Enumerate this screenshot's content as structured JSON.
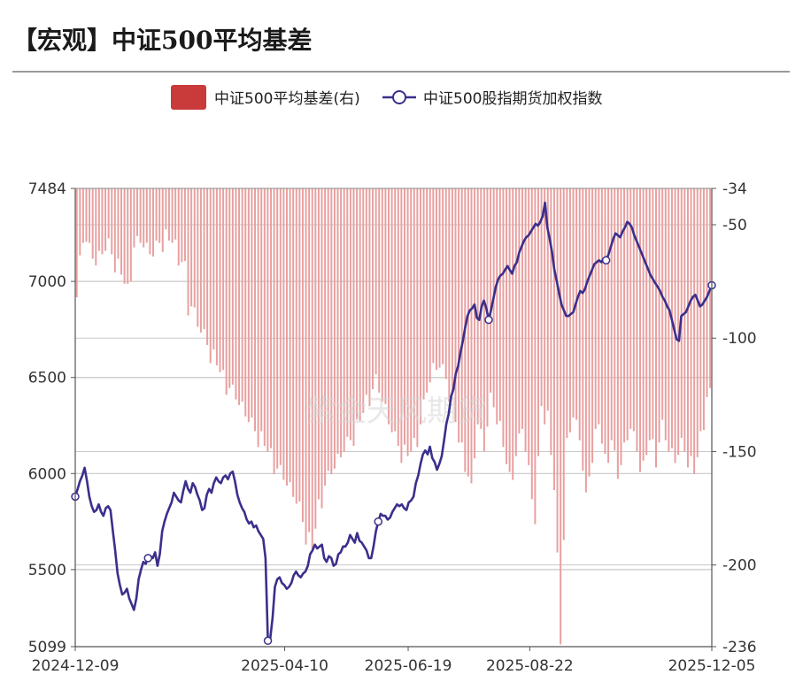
{
  "header": {
    "title": "【宏观】中证500平均基差"
  },
  "watermark": "紫金天风期货",
  "chart_data": {
    "type": "bar+line",
    "title": "【宏观】中证500平均基差",
    "x_tick_labels": [
      "2024-12-09",
      "2025-04-10",
      "2025-06-19",
      "2025-08-22",
      "2025-12-05"
    ],
    "y_left": {
      "range": [
        5099,
        7484
      ],
      "ticks": [
        7484,
        7000,
        6500,
        6000,
        5500,
        5099
      ]
    },
    "y_right": {
      "range": [
        -236,
        -34
      ],
      "ticks": [
        -34,
        -50,
        -100,
        -150,
        -200,
        -236
      ]
    },
    "grid": "horizontal",
    "legend_position": "top-center",
    "series": [
      {
        "name": "中证500平均基差(右)",
        "type": "bar",
        "axis": "right",
        "color": "#c93a3a",
        "anchors": [
          [
            0,
            -82
          ],
          [
            2,
            -53
          ],
          [
            4,
            -62
          ],
          [
            6,
            -68
          ],
          [
            8,
            -63
          ],
          [
            10,
            -60
          ],
          [
            12,
            -66
          ],
          [
            14,
            -72
          ],
          [
            16,
            -80
          ],
          [
            18,
            -60
          ],
          [
            20,
            -58
          ],
          [
            22,
            -62
          ],
          [
            24,
            -64
          ],
          [
            26,
            -58
          ],
          [
            28,
            -56
          ],
          [
            30,
            -58
          ],
          [
            32,
            -63
          ],
          [
            34,
            -70
          ],
          [
            35,
            -90
          ],
          [
            36,
            -86
          ],
          [
            38,
            -95
          ],
          [
            40,
            -100
          ],
          [
            42,
            -106
          ],
          [
            44,
            -112
          ],
          [
            46,
            -118
          ],
          [
            48,
            -122
          ],
          [
            50,
            -127
          ],
          [
            52,
            -132
          ],
          [
            54,
            -137
          ],
          [
            56,
            -141
          ],
          [
            58,
            -145
          ],
          [
            60,
            -150
          ],
          [
            62,
            -155
          ],
          [
            64,
            -160
          ],
          [
            66,
            -165
          ],
          [
            68,
            -170
          ],
          [
            70,
            -176
          ],
          [
            72,
            -186
          ],
          [
            74,
            -193
          ],
          [
            76,
            -175
          ],
          [
            78,
            -165
          ],
          [
            80,
            -160
          ],
          [
            82,
            -155
          ],
          [
            84,
            -150
          ],
          [
            86,
            -145
          ],
          [
            88,
            -140
          ],
          [
            90,
            -133
          ],
          [
            92,
            -125
          ],
          [
            94,
            -120
          ],
          [
            96,
            -128
          ],
          [
            98,
            -138
          ],
          [
            100,
            -145
          ],
          [
            102,
            -150
          ],
          [
            104,
            -152
          ],
          [
            106,
            -148
          ],
          [
            108,
            -138
          ],
          [
            110,
            -124
          ],
          [
            112,
            -115
          ],
          [
            114,
            -113
          ],
          [
            116,
            -118
          ],
          [
            118,
            -128
          ],
          [
            120,
            -146
          ],
          [
            122,
            -154
          ],
          [
            124,
            -168
          ],
          [
            126,
            -138
          ],
          [
            128,
            -150
          ],
          [
            130,
            -128
          ],
          [
            132,
            -133
          ],
          [
            134,
            -148
          ],
          [
            136,
            -163
          ],
          [
            138,
            -152
          ],
          [
            140,
            -140
          ],
          [
            142,
            -160
          ],
          [
            144,
            -182
          ],
          [
            146,
            -130
          ],
          [
            148,
            -136
          ],
          [
            150,
            -167
          ],
          [
            152,
            -230
          ],
          [
            154,
            -148
          ],
          [
            156,
            -135
          ],
          [
            158,
            -145
          ],
          [
            160,
            -172
          ],
          [
            162,
            -150
          ],
          [
            164,
            -138
          ],
          [
            166,
            -155
          ],
          [
            168,
            -145
          ],
          [
            170,
            -162
          ],
          [
            172,
            -150
          ],
          [
            174,
            -140
          ],
          [
            176,
            -150
          ],
          [
            178,
            -158
          ],
          [
            180,
            -145
          ],
          [
            182,
            -152
          ],
          [
            184,
            -140
          ],
          [
            186,
            -150
          ],
          [
            188,
            -155
          ],
          [
            190,
            -148
          ],
          [
            192,
            -152
          ],
          [
            194,
            -160
          ],
          [
            196,
            -145
          ],
          [
            198,
            -126
          ]
        ]
      },
      {
        "name": "中证500股指期货加权指数",
        "type": "line",
        "axis": "left",
        "color": "#3a2f8c",
        "values": [
          5880,
          5920,
          5960,
          5990,
          6030,
          5960,
          5880,
          5830,
          5800,
          5810,
          5840,
          5800,
          5780,
          5820,
          5830,
          5810,
          5700,
          5600,
          5480,
          5420,
          5370,
          5380,
          5400,
          5350,
          5320,
          5290,
          5350,
          5450,
          5500,
          5540,
          5530,
          5560,
          5570,
          5560,
          5590,
          5520,
          5580,
          5700,
          5750,
          5790,
          5820,
          5850,
          5900,
          5880,
          5860,
          5850,
          5910,
          5960,
          5920,
          5900,
          5950,
          5930,
          5890,
          5860,
          5810,
          5820,
          5890,
          5920,
          5900,
          5950,
          5980,
          5960,
          5950,
          5980,
          5990,
          5970,
          6000,
          6010,
          5960,
          5890,
          5850,
          5820,
          5800,
          5760,
          5740,
          5750,
          5720,
          5730,
          5700,
          5680,
          5660,
          5560,
          5130,
          5140,
          5250,
          5410,
          5450,
          5460,
          5430,
          5420,
          5400,
          5410,
          5430,
          5470,
          5490,
          5470,
          5460,
          5480,
          5490,
          5520,
          5580,
          5600,
          5630,
          5610,
          5620,
          5630,
          5560,
          5540,
          5570,
          5560,
          5520,
          5530,
          5580,
          5590,
          5620,
          5620,
          5640,
          5680,
          5660,
          5640,
          5690,
          5650,
          5640,
          5620,
          5600,
          5560,
          5560,
          5620,
          5700,
          5750,
          5790,
          5780,
          5780,
          5760,
          5770,
          5800,
          5820,
          5840,
          5830,
          5840,
          5820,
          5810,
          5850,
          5860,
          5880,
          5950,
          5990,
          6050,
          6100,
          6120,
          6100,
          6140,
          6080,
          6060,
          6020,
          6050,
          6090,
          6170,
          6260,
          6310,
          6400,
          6440,
          6520,
          6560,
          6630,
          6690,
          6760,
          6820,
          6850,
          6860,
          6880,
          6810,
          6800,
          6870,
          6900,
          6860,
          6800,
          6850,
          6910,
          6970,
          7010,
          7030,
          7040,
          7060,
          7080,
          7060,
          7040,
          7080,
          7100,
          7150,
          7180,
          7210,
          7230,
          7240,
          7260,
          7280,
          7300,
          7290,
          7310,
          7340,
          7410,
          7280,
          7220,
          7150,
          7060,
          7000,
          6940,
          6880,
          6850,
          6820,
          6820,
          6830,
          6840,
          6880,
          6920,
          6950,
          6940,
          6960,
          7000,
          7030,
          7060,
          7090,
          7100,
          7110,
          7100,
          7120,
          7110,
          7140,
          7180,
          7220,
          7250,
          7240,
          7230,
          7260,
          7280,
          7310,
          7300,
          7280,
          7240,
          7210,
          7180,
          7150,
          7120,
          7090,
          7060,
          7030,
          7010,
          6990,
          6970,
          6950,
          6920,
          6900,
          6870,
          6850,
          6800,
          6750,
          6700,
          6690,
          6820,
          6830,
          6840,
          6870,
          6900,
          6920,
          6930,
          6900,
          6870,
          6880,
          6900,
          6920,
          6950,
          6980
        ]
      }
    ]
  }
}
